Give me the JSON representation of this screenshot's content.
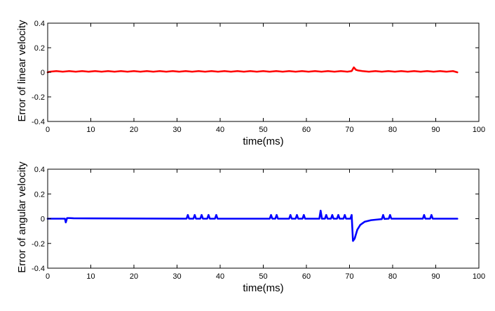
{
  "chart_data": [
    {
      "type": "line",
      "xlabel": "time(ms)",
      "ylabel": "Error of linear velocity",
      "xlim": [
        0,
        100
      ],
      "ylim": [
        -0.4,
        0.4
      ],
      "xticks": [
        "0",
        "10",
        "20",
        "30",
        "40",
        "50",
        "60",
        "70",
        "80",
        "90",
        "100"
      ],
      "yticks": [
        "-0.4",
        "-0.2",
        "0",
        "0.2",
        "0.4"
      ],
      "grid": false,
      "series": [
        {
          "color": "#ff0000",
          "x": [
            0,
            0.5,
            2,
            3.5,
            5,
            6.5,
            8,
            9.5,
            11,
            12.5,
            14,
            15.5,
            17,
            18.5,
            20,
            21.5,
            23,
            24.5,
            26,
            27.5,
            29,
            30.5,
            32,
            33.5,
            35,
            36.5,
            38,
            39.5,
            41,
            42.5,
            44,
            45.5,
            47,
            48.5,
            50,
            51.5,
            53,
            54.5,
            56,
            57.5,
            59,
            60.5,
            62,
            63.5,
            65,
            66.5,
            68,
            69.5,
            70.5,
            71,
            71.5,
            72,
            73,
            74.5,
            76,
            77.5,
            79,
            80.5,
            82,
            83.5,
            85,
            86.5,
            88,
            89.5,
            91,
            92.5,
            94,
            95
          ],
          "y": [
            0,
            0.005,
            0.01,
            0.005,
            0.01,
            0.005,
            0.01,
            0.005,
            0.01,
            0.005,
            0.01,
            0.005,
            0.01,
            0.005,
            0.01,
            0.005,
            0.01,
            0.005,
            0.01,
            0.005,
            0.01,
            0.005,
            0.01,
            0.005,
            0.01,
            0.005,
            0.01,
            0.005,
            0.01,
            0.005,
            0.01,
            0.005,
            0.01,
            0.005,
            0.01,
            0.005,
            0.01,
            0.005,
            0.01,
            0.005,
            0.01,
            0.005,
            0.01,
            0.005,
            0.01,
            0.005,
            0.01,
            0.005,
            0.01,
            0.04,
            0.02,
            0.015,
            0.01,
            0.005,
            0.01,
            0.005,
            0.01,
            0.005,
            0.01,
            0.005,
            0.01,
            0.005,
            0.01,
            0.005,
            0.01,
            0.005,
            0.01,
            0
          ]
        }
      ]
    },
    {
      "type": "line",
      "xlabel": "time(ms)",
      "ylabel": "Error of angular velocity",
      "xlim": [
        0,
        100
      ],
      "ylim": [
        -0.4,
        0.4
      ],
      "xticks": [
        "0",
        "10",
        "20",
        "30",
        "40",
        "50",
        "60",
        "70",
        "80",
        "90",
        "100"
      ],
      "yticks": [
        "-0.4",
        "-0.2",
        "0",
        "0.2",
        "0.4"
      ],
      "grid": false,
      "series": [
        {
          "color": "#0000ff",
          "x": [
            0,
            4,
            4.2,
            4.5,
            5,
            6,
            32.2,
            32.5,
            32.8,
            33.8,
            34.1,
            34.4,
            35.4,
            35.7,
            36,
            37,
            37.3,
            37.6,
            38.8,
            39.1,
            39.4,
            51.5,
            51.8,
            52.1,
            52.8,
            53.1,
            53.4,
            56,
            56.3,
            56.6,
            57.5,
            57.8,
            58.1,
            59.1,
            59.4,
            59.7,
            63,
            63.3,
            63.6,
            64.3,
            64.6,
            64.9,
            65.7,
            66,
            66.3,
            67.1,
            67.4,
            67.7,
            68.6,
            68.9,
            69.2,
            70.2,
            70.5,
            70.8,
            71.2,
            71.8,
            72.5,
            73.5,
            75,
            77,
            77.5,
            77.8,
            78.1,
            79.1,
            79.4,
            79.7,
            80,
            87,
            87.3,
            87.6,
            88.7,
            89,
            89.3,
            95
          ],
          "y": [
            0,
            0,
            -0.03,
            0.005,
            0.005,
            0.003,
            0,
            0.03,
            0,
            0,
            0.03,
            0,
            0,
            0.03,
            0,
            0,
            0.03,
            0,
            0,
            0.03,
            0,
            0,
            0.03,
            0,
            0,
            0.03,
            0,
            0,
            0.03,
            0,
            0,
            0.03,
            0,
            0,
            0.03,
            0,
            0,
            0.065,
            0,
            0,
            0.03,
            0,
            0,
            0.03,
            0,
            0,
            0.03,
            0,
            0,
            0.03,
            0,
            0,
            0.03,
            -0.18,
            -0.16,
            -0.09,
            -0.05,
            -0.025,
            -0.012,
            -0.005,
            -0.003,
            0.03,
            -0.002,
            0,
            0.03,
            0,
            0,
            0,
            0.03,
            0,
            0,
            0.03,
            0,
            0
          ]
        }
      ]
    }
  ]
}
